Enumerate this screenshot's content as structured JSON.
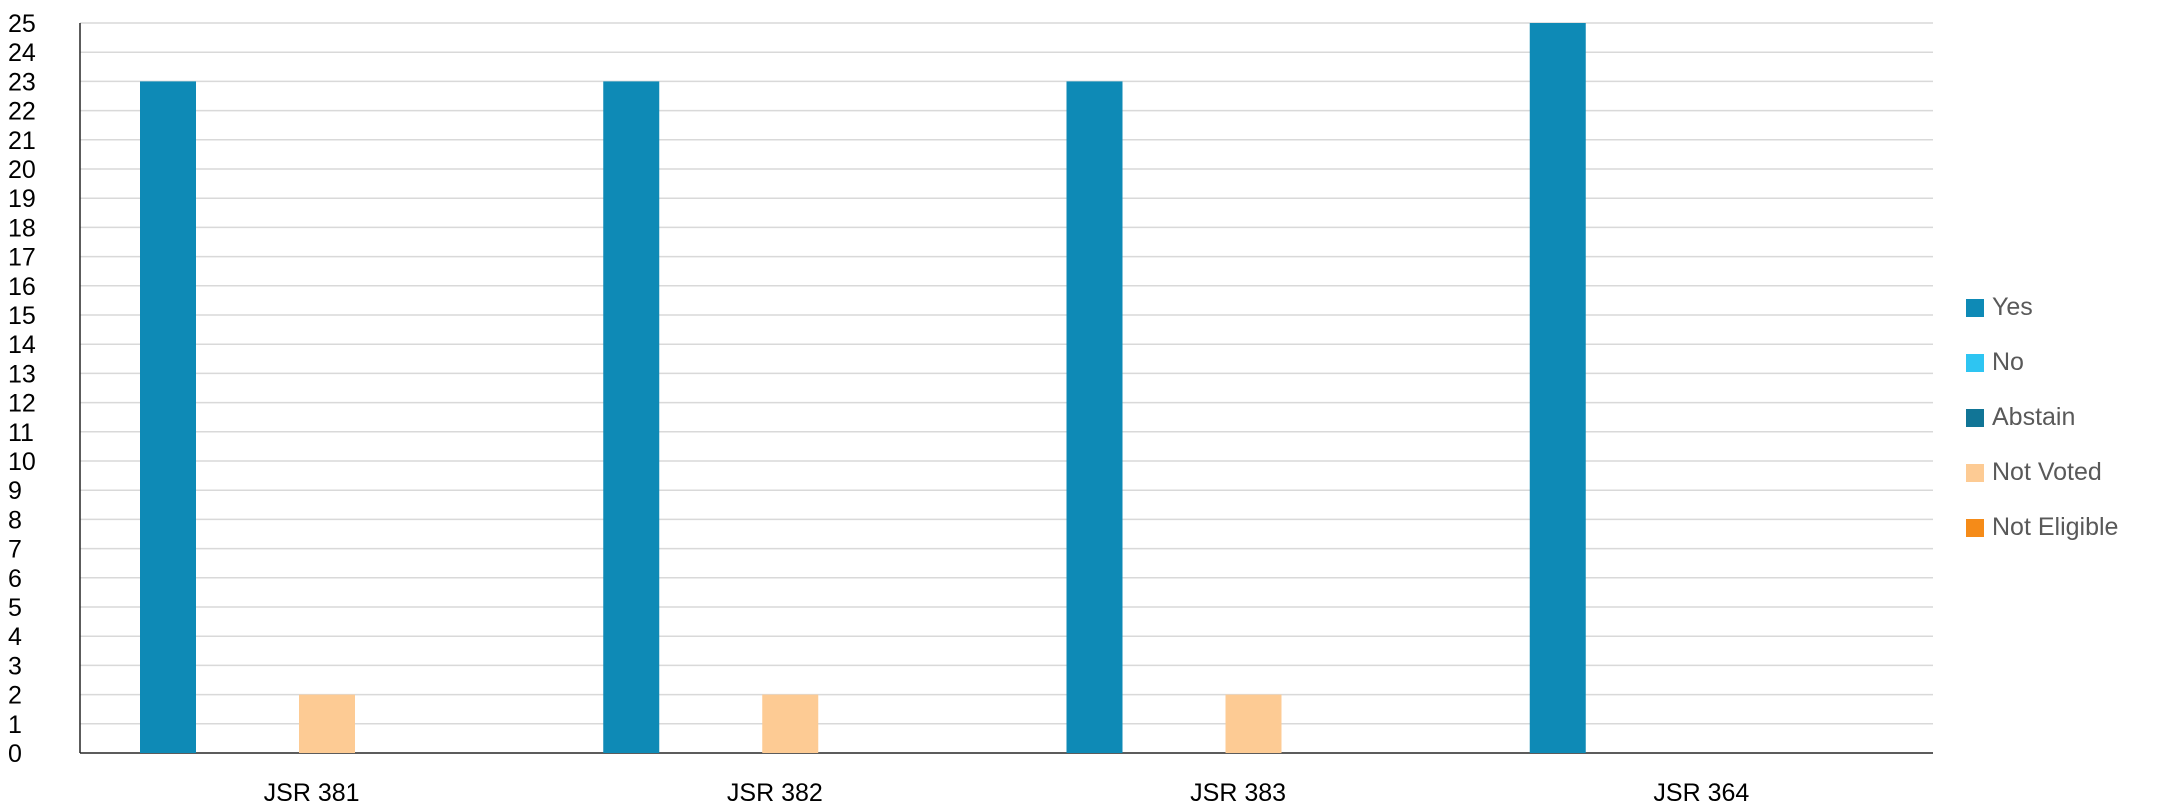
{
  "chart_data": {
    "type": "bar",
    "categories": [
      "JSR 381",
      "JSR 382",
      "JSR 383",
      "JSR 364"
    ],
    "series": [
      {
        "name": "Yes",
        "color": "#0e8ab6",
        "values": [
          23,
          23,
          23,
          25
        ]
      },
      {
        "name": "No",
        "color": "#2ec5f2",
        "values": [
          0,
          0,
          0,
          0
        ]
      },
      {
        "name": "Abstain",
        "color": "#117596",
        "values": [
          0,
          0,
          0,
          0
        ]
      },
      {
        "name": "Not Voted",
        "color": "#fdcb94",
        "values": [
          2,
          2,
          2,
          0
        ]
      },
      {
        "name": "Not Eligible",
        "color": "#f58b18",
        "values": [
          0,
          0,
          0,
          0
        ]
      }
    ],
    "ylim": [
      0,
      25
    ],
    "yticks": [
      0,
      1,
      2,
      3,
      4,
      5,
      6,
      7,
      8,
      9,
      10,
      11,
      12,
      13,
      14,
      15,
      16,
      17,
      18,
      19,
      20,
      21,
      22,
      23,
      24,
      25
    ],
    "grid": true,
    "legend_position": "right"
  }
}
